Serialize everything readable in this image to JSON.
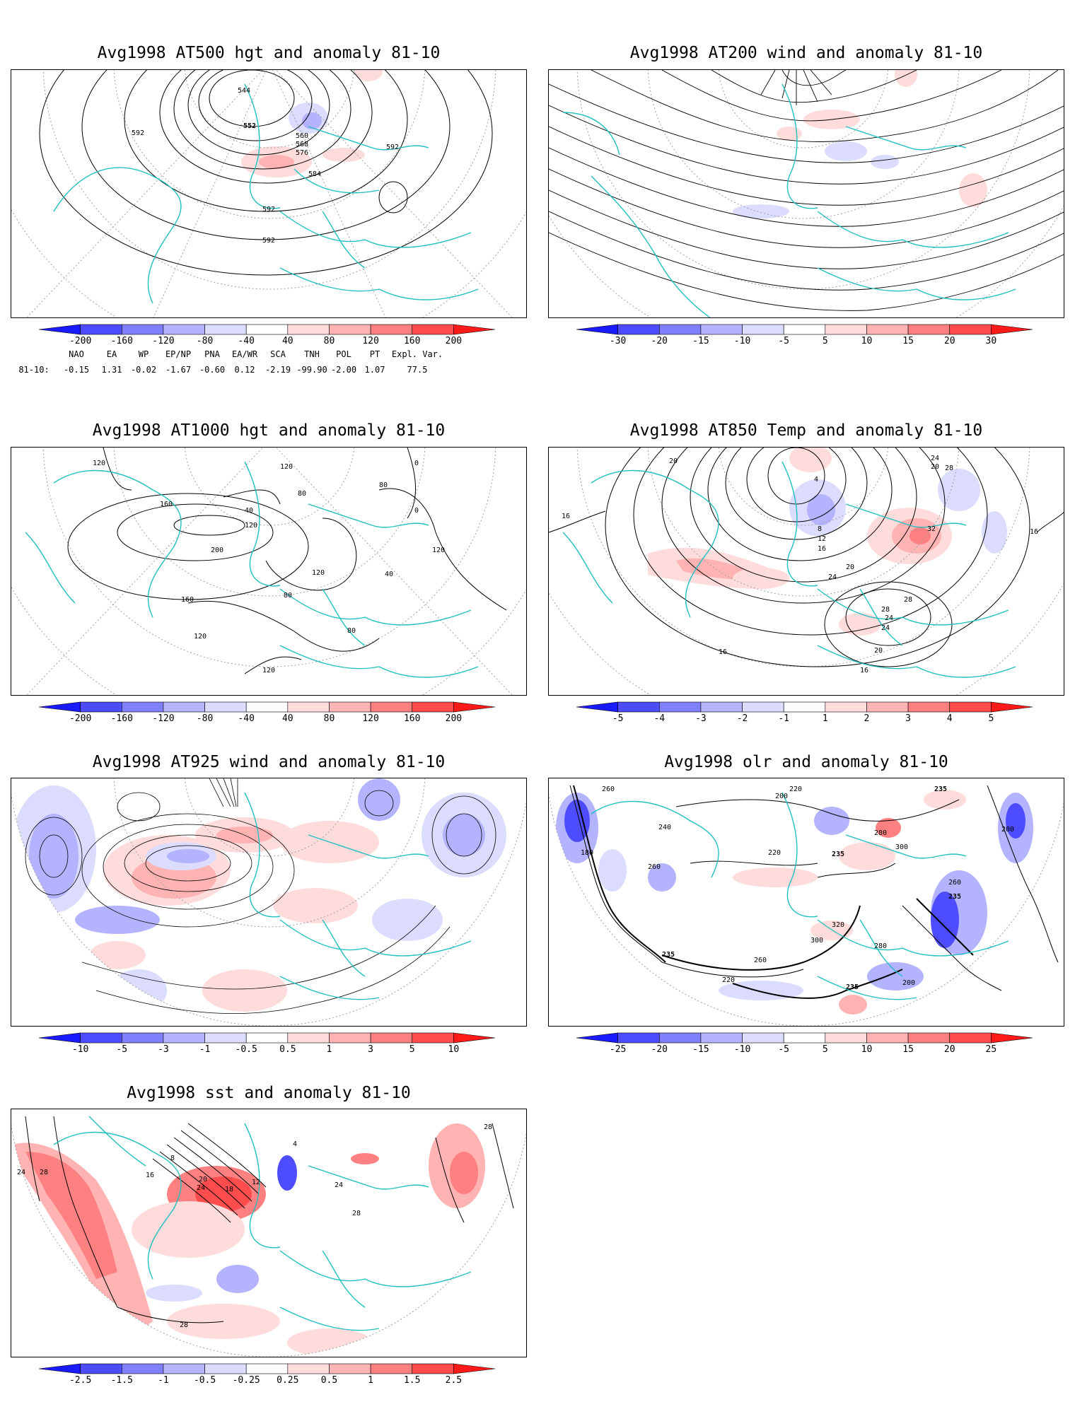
{
  "panels": [
    {
      "id": "p1",
      "title": "Avg1998 AT500 hgt and anomaly 81-10",
      "contour_labels": [
        "544",
        "552",
        "560",
        "568",
        "576",
        "584",
        "592",
        "592",
        "592",
        "592"
      ],
      "colorbar": {
        "labels": [
          "-200",
          "-160",
          "-120",
          "-80",
          "-40",
          "40",
          "80",
          "120",
          "160",
          "200"
        ]
      }
    },
    {
      "id": "p2",
      "title": "Avg1998 AT200 wind and anomaly 81-10",
      "contour_labels": [],
      "colorbar": {
        "labels": [
          "-30",
          "-20",
          "-15",
          "-10",
          "-5",
          "5",
          "10",
          "15",
          "20",
          "30"
        ]
      }
    },
    {
      "id": "p3",
      "title": "Avg1998 AT1000 hgt and anomaly 81-10",
      "contour_labels": [
        "120",
        "120",
        "80",
        "40",
        "0",
        "160",
        "200",
        "120",
        "80",
        "120",
        "40",
        "120",
        "160",
        "120",
        "80",
        "0",
        "80",
        "120"
      ],
      "colorbar": {
        "labels": [
          "-200",
          "-160",
          "-120",
          "-80",
          "-40",
          "40",
          "80",
          "120",
          "160",
          "200"
        ]
      }
    },
    {
      "id": "p4",
      "title": "Avg1998 AT850 Temp and anomaly 81-10",
      "contour_labels": [
        "20",
        "16",
        "4",
        "8",
        "12",
        "16",
        "20",
        "24",
        "28",
        "32",
        "24",
        "28",
        "24",
        "20",
        "16",
        "16",
        "16",
        "20",
        "28",
        "24"
      ],
      "colorbar": {
        "labels": [
          "-5",
          "-4",
          "-3",
          "-2",
          "-1",
          "1",
          "2",
          "3",
          "4",
          "5"
        ]
      }
    },
    {
      "id": "p5",
      "title": "Avg1998 AT925 wind and anomaly 81-10",
      "contour_labels": [],
      "colorbar": {
        "labels": [
          "-10",
          "-5",
          "-3",
          "-1",
          "-0.5",
          "0.5",
          "1",
          "3",
          "5",
          "10"
        ]
      }
    },
    {
      "id": "p6",
      "title": "Avg1998 olr and anomaly 81-10",
      "contour_labels": [
        "260",
        "200",
        "235",
        "220",
        "180",
        "240",
        "260",
        "220",
        "235",
        "280",
        "300",
        "260",
        "235",
        "200",
        "320",
        "300",
        "280",
        "220",
        "260",
        "235",
        "200",
        "235"
      ],
      "colorbar": {
        "labels": [
          "-25",
          "-20",
          "-15",
          "-10",
          "-5",
          "5",
          "10",
          "15",
          "20",
          "25"
        ]
      }
    },
    {
      "id": "p7",
      "title": "Avg1998 sst and anomaly 81-10",
      "contour_labels": [
        "24",
        "28",
        "8",
        "16",
        "20",
        "24",
        "18",
        "12",
        "4",
        "24",
        "28",
        "28",
        "28"
      ],
      "colorbar": {
        "labels": [
          "-2.5",
          "-1.5",
          "-1",
          "-0.5",
          "-0.25",
          "0.25",
          "0.5",
          "1",
          "1.5",
          "2.5"
        ]
      }
    }
  ],
  "indices": {
    "headers": [
      "NAO",
      "EA",
      "WP",
      "EP/NP",
      "PNA",
      "EA/WR",
      "SCA",
      "TNH",
      "POL",
      "PT",
      "Expl. Var."
    ],
    "row_label": "81-10:",
    "values": [
      "-0.15",
      "1.31",
      "-0.02",
      "-1.67",
      "-0.60",
      "0.12",
      "-2.19",
      "-99.90",
      "-2.00",
      "1.07",
      "77.5"
    ]
  },
  "colors": {
    "coastline": "#22c0c0",
    "contour": "#000000",
    "neg_ramp": [
      "#1a1aff",
      "#4d4dff",
      "#8080ff",
      "#b3b3ff",
      "#dcdcff"
    ],
    "pos_ramp": [
      "#ffdcdc",
      "#ffb3b3",
      "#ff8080",
      "#ff4d4d",
      "#ff1a1a"
    ]
  }
}
